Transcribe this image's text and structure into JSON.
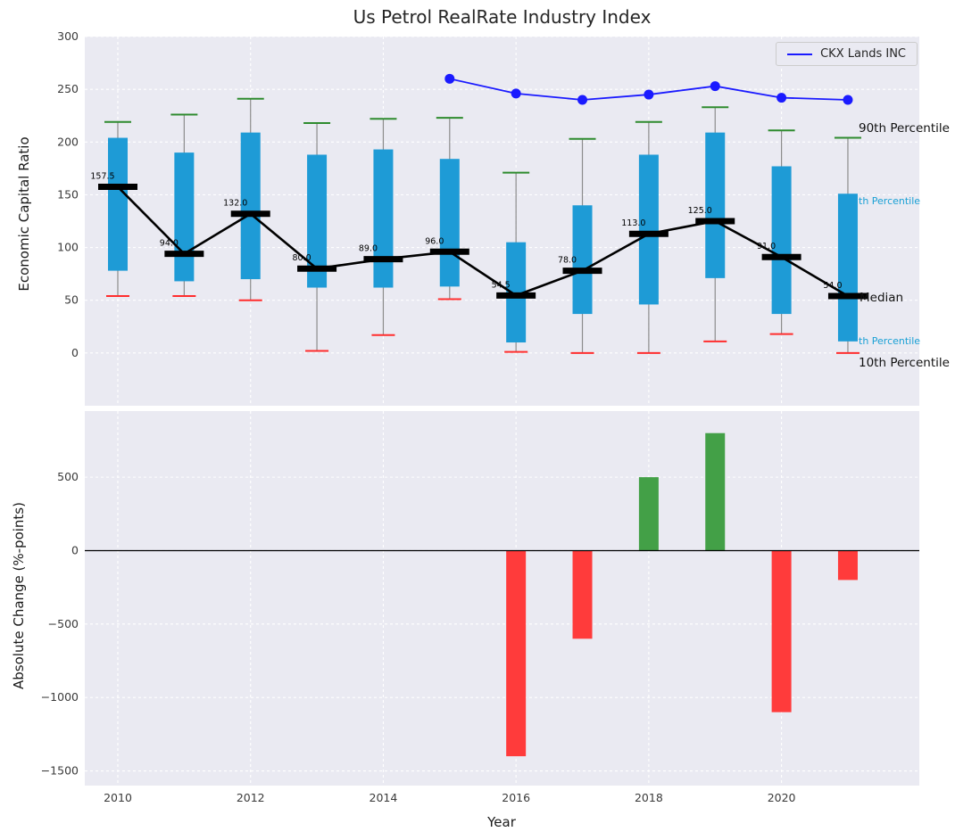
{
  "title": "Us Petrol RealRate Industry Index",
  "annotations": {
    "p90": "90th Percentile",
    "p75": "th Percentile",
    "median": "Median",
    "p25": "th Percentile",
    "p10": "10th Percentile"
  },
  "colors": {
    "plot_bg": "#eaeaf2",
    "box": "#1e9bd6",
    "cap_high": "#2e8b2e",
    "cap_low": "#ff2d2d",
    "median": "#000000",
    "ckx_line": "#1a1aff",
    "bar_positive": "#43a047",
    "bar_negative": "#ff3b3b",
    "annotation_cyan": "#19a0d5"
  },
  "chart_data": [
    {
      "type": "box",
      "title": "Us Petrol RealRate Industry Index",
      "ylabel": "Economic Capital Ratio",
      "ylim": [
        -50,
        300
      ],
      "yticks": [
        0,
        50,
        100,
        150,
        200,
        250,
        300
      ],
      "grid": true,
      "legend_position": "upper right",
      "categories": [
        2010,
        2011,
        2012,
        2013,
        2014,
        2015,
        2016,
        2017,
        2018,
        2019,
        2020,
        2021
      ],
      "p90": [
        219,
        226,
        241,
        218,
        222,
        223,
        171,
        203,
        219,
        233,
        211,
        204
      ],
      "p75": [
        204,
        190,
        209,
        188,
        193,
        184,
        105,
        140,
        188,
        209,
        177,
        151
      ],
      "median": [
        157.5,
        94,
        132,
        80,
        89,
        96,
        54.5,
        78,
        113,
        125,
        91,
        54
      ],
      "p25": [
        78,
        68,
        70,
        62,
        62,
        63,
        10,
        37,
        46,
        71,
        37,
        11
      ],
      "p10": [
        54,
        54,
        50,
        2,
        17,
        51,
        1,
        0,
        0,
        11,
        18,
        0
      ],
      "median_labels": [
        "157.5",
        "94.0",
        "132.0",
        "80.0",
        "89.0",
        "96.0",
        "54.5",
        "78.0",
        "113.0",
        "125.0",
        "91.0",
        "54.0"
      ],
      "overlay_line": {
        "name": "CKX Lands INC",
        "x": [
          2015,
          2016,
          2017,
          2018,
          2019,
          2020,
          2021
        ],
        "y": [
          260,
          246,
          240,
          245,
          253,
          242,
          240
        ]
      }
    },
    {
      "type": "bar",
      "xlabel": "Year",
      "ylabel": "Absolute Change (%-points)",
      "ylim": [
        -1600,
        950
      ],
      "yticks": [
        -1500,
        -1000,
        -500,
        0,
        500
      ],
      "xticks": [
        2010,
        2012,
        2014,
        2016,
        2018,
        2020
      ],
      "grid": true,
      "x": [
        2016,
        2017,
        2018,
        2019,
        2020,
        2021
      ],
      "values": [
        -1400,
        -600,
        500,
        800,
        -1100,
        -200
      ]
    }
  ]
}
